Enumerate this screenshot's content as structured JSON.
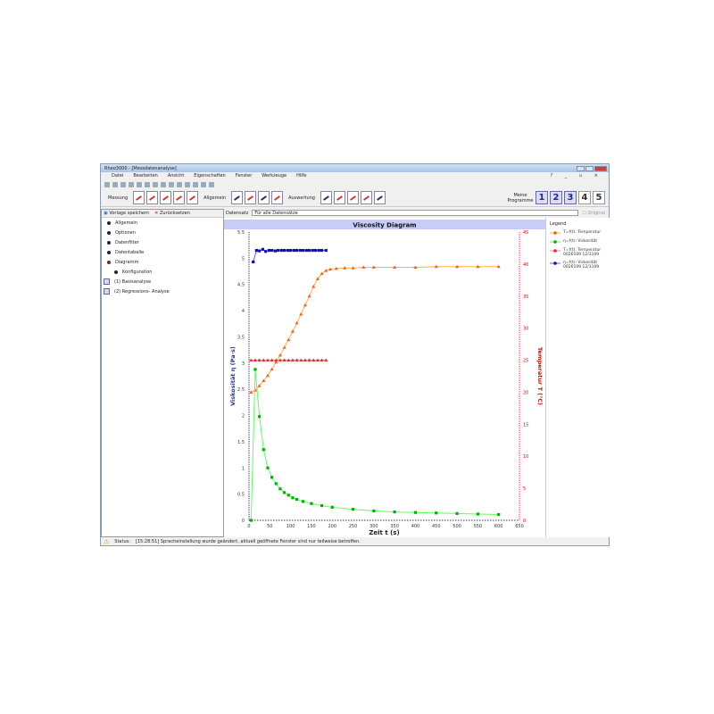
{
  "window": {
    "title": "Rheo3000 - [Messdatenanalyse]",
    "help_controls": "? _ ▫ ×"
  },
  "menu": [
    "Datei",
    "Bearbeiten",
    "Ansicht",
    "Eigenschaften",
    "Fenster",
    "Werkzeuge",
    "Hilfe"
  ],
  "toolbar": {
    "messung": "Messung",
    "allgemein": "Allgemein",
    "auswertung": "Auswertung",
    "meine_programme": "Meine Programme",
    "programs": [
      "1",
      "2",
      "3",
      "4",
      "5"
    ]
  },
  "left": {
    "save_template": "Vorlage speichern",
    "reset": "Zurücksetzen",
    "items": [
      "Allgemein",
      "Optionen",
      "Datenfilter",
      "Datentabelle",
      "Diagramm"
    ],
    "sub": "Konfiguration",
    "analyses": [
      "(1) Basisanalyse",
      "(2) Regressions- Analyse"
    ]
  },
  "dataset": {
    "label": "Datensatz",
    "value": "Für alle Datensätze",
    "original": "Original"
  },
  "status": {
    "label": "Status:",
    "message": "[15:28:51] Spracheinstellung wurde geändert, aktuell geöffnete Fenster sind nur teilweise betroffen."
  },
  "chart_data": {
    "type": "line",
    "title": "Viscosity Diagram",
    "xlabel": "Zeit t (s)",
    "ylabel": "Viskosität η (Pa·s)",
    "y2label": "Temperatur T (°C)",
    "xlim": [
      0,
      650
    ],
    "ylim": [
      0,
      5.5
    ],
    "y2lim": [
      0,
      45
    ],
    "xticks": [
      0,
      50,
      100,
      150,
      200,
      250,
      300,
      350,
      400,
      450,
      500,
      550,
      600,
      650
    ],
    "yticks": [
      0,
      0.5,
      1,
      1.5,
      2,
      2.5,
      3,
      3.5,
      4,
      4.5,
      5,
      5.5
    ],
    "y2ticks": [
      0,
      5,
      10,
      15,
      20,
      25,
      30,
      35,
      40,
      45
    ],
    "legend_title": "Legend",
    "series": [
      {
        "name": "T=f(t): Temperatur",
        "axis": "right",
        "color": "#ff5a1e",
        "line": "#ffb040",
        "marker": "triangle",
        "x": [
          5,
          15,
          25,
          35,
          45,
          55,
          65,
          75,
          85,
          95,
          105,
          115,
          125,
          135,
          145,
          155,
          165,
          175,
          185,
          195,
          210,
          230,
          250,
          275,
          300,
          350,
          400,
          450,
          500,
          550,
          600
        ],
        "y": [
          20,
          20.3,
          21,
          21.8,
          22.6,
          23.6,
          24.7,
          25.8,
          27,
          28.2,
          29.5,
          30.8,
          32.2,
          33.6,
          35,
          36.5,
          37.7,
          38.5,
          39,
          39.2,
          39.3,
          39.4,
          39.4,
          39.5,
          39.5,
          39.5,
          39.5,
          39.6,
          39.6,
          39.6,
          39.6
        ]
      },
      {
        "name": "η=f(t): Viskosität",
        "axis": "left",
        "color": "#00b000",
        "line": "#60ff60",
        "marker": "square",
        "x": [
          5,
          15,
          25,
          35,
          45,
          55,
          65,
          75,
          85,
          95,
          105,
          115,
          130,
          150,
          175,
          200,
          250,
          300,
          350,
          400,
          450,
          500,
          550,
          600
        ],
        "y": [
          0,
          2.88,
          1.98,
          1.35,
          1.0,
          0.82,
          0.7,
          0.6,
          0.53,
          0.48,
          0.43,
          0.4,
          0.36,
          0.32,
          0.28,
          0.25,
          0.21,
          0.18,
          0.16,
          0.15,
          0.14,
          0.13,
          0.12,
          0.11
        ]
      },
      {
        "name": "T=f(t): Temperatur 0026109 12/3109",
        "axis": "right",
        "color": "#ff2020",
        "line": "#ff9090",
        "marker": "triangle",
        "x": [
          5,
          15,
          25,
          35,
          45,
          55,
          65,
          75,
          85,
          95,
          105,
          115,
          125,
          135,
          145,
          155,
          165,
          175,
          185
        ],
        "y": [
          25,
          25,
          25,
          25,
          25,
          25,
          25,
          25,
          25,
          25,
          25,
          25,
          25,
          25,
          25,
          25,
          25,
          25,
          25
        ]
      },
      {
        "name": "η=f(t): Viskosität 0026109 12/3109",
        "axis": "left",
        "color": "#1010b0",
        "line": "#6060ff",
        "marker": "square",
        "x": [
          10,
          18,
          25,
          33,
          40,
          48,
          55,
          63,
          70,
          78,
          85,
          93,
          100,
          108,
          115,
          123,
          130,
          138,
          145,
          153,
          160,
          168,
          175,
          185
        ],
        "y": [
          4.93,
          5.15,
          5.14,
          5.17,
          5.13,
          5.15,
          5.15,
          5.14,
          5.15,
          5.15,
          5.15,
          5.15,
          5.15,
          5.15,
          5.15,
          5.15,
          5.15,
          5.15,
          5.15,
          5.15,
          5.15,
          5.15,
          5.15,
          5.15
        ]
      }
    ]
  }
}
